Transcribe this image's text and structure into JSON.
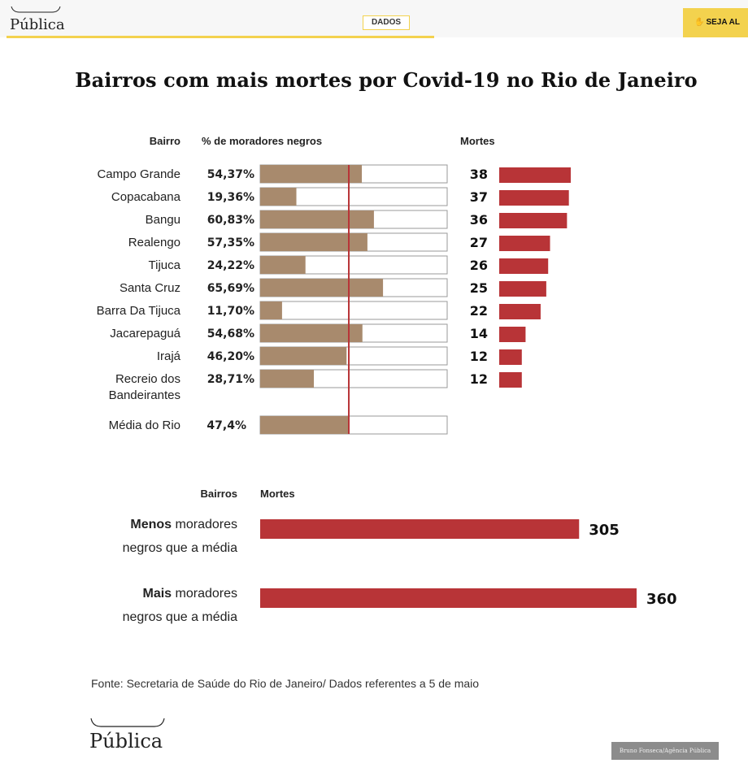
{
  "header": {
    "logo_text": "Pública",
    "section_tag": "DADOS",
    "cta_label": "SEJA AL"
  },
  "colors": {
    "percent_bar": "#a88a6d",
    "deaths_bar": "#b83437",
    "average_line": "#b83437",
    "accent_yellow": "#f3d24e"
  },
  "chart_data": [
    {
      "type": "bar",
      "title": "Bairros com mais mortes por Covid-19 no Rio de Janeiro",
      "column_headers": {
        "neighborhood": "Bairro",
        "percent": "% de moradores negros",
        "deaths": "Mortes"
      },
      "categories": [
        "Campo Grande",
        "Copacabana",
        "Bangu",
        "Realengo",
        "Tijuca",
        "Santa Cruz",
        "Barra Da Tijuca",
        "Jacarepaguá",
        "Irajá",
        "Recreio dos Bandeirantes"
      ],
      "category_lines": [
        [
          "Campo Grande"
        ],
        [
          "Copacabana"
        ],
        [
          "Bangu"
        ],
        [
          "Realengo"
        ],
        [
          "Tijuca"
        ],
        [
          "Santa Cruz"
        ],
        [
          "Barra Da Tijuca"
        ],
        [
          "Jacarepaguá"
        ],
        [
          "Irajá"
        ],
        [
          "Recreio dos",
          "Bandeirantes"
        ]
      ],
      "series": [
        {
          "name": "% de moradores negros",
          "values": [
            54.37,
            19.36,
            60.83,
            57.35,
            24.22,
            65.69,
            11.7,
            54.68,
            46.2,
            28.71
          ],
          "labels": [
            "54,37%",
            "19,36%",
            "60,83%",
            "57,35%",
            "24,22%",
            "65,69%",
            "11,70%",
            "54,68%",
            "46,20%",
            "28,71%"
          ]
        },
        {
          "name": "Mortes",
          "values": [
            38,
            37,
            36,
            27,
            26,
            25,
            22,
            14,
            12,
            12
          ],
          "labels": [
            "38",
            "37",
            "36",
            "27",
            "26",
            "25",
            "22",
            "14",
            "12",
            "12"
          ]
        }
      ],
      "percent_range": [
        0,
        100
      ],
      "average": {
        "label": "Média do Rio",
        "value": 47.4,
        "value_label": "47,4%"
      }
    },
    {
      "type": "bar",
      "column_headers": {
        "group": "Bairros",
        "deaths": "Mortes"
      },
      "categories": [
        {
          "bold": "Menos",
          "rest": " moradores",
          "line2": "negros que a média"
        },
        {
          "bold": "Mais",
          "rest": " moradores",
          "line2": "negros que a média"
        }
      ],
      "values": [
        305,
        360
      ],
      "value_labels": [
        "305",
        "360"
      ]
    }
  ],
  "footer": {
    "source": "Fonte: Secretaria de Saúde do Rio de Janeiro/ Dados referentes a 5 de maio",
    "logo_text": "Pública",
    "credit": "Bruno Fonseca/Agência Pública"
  }
}
